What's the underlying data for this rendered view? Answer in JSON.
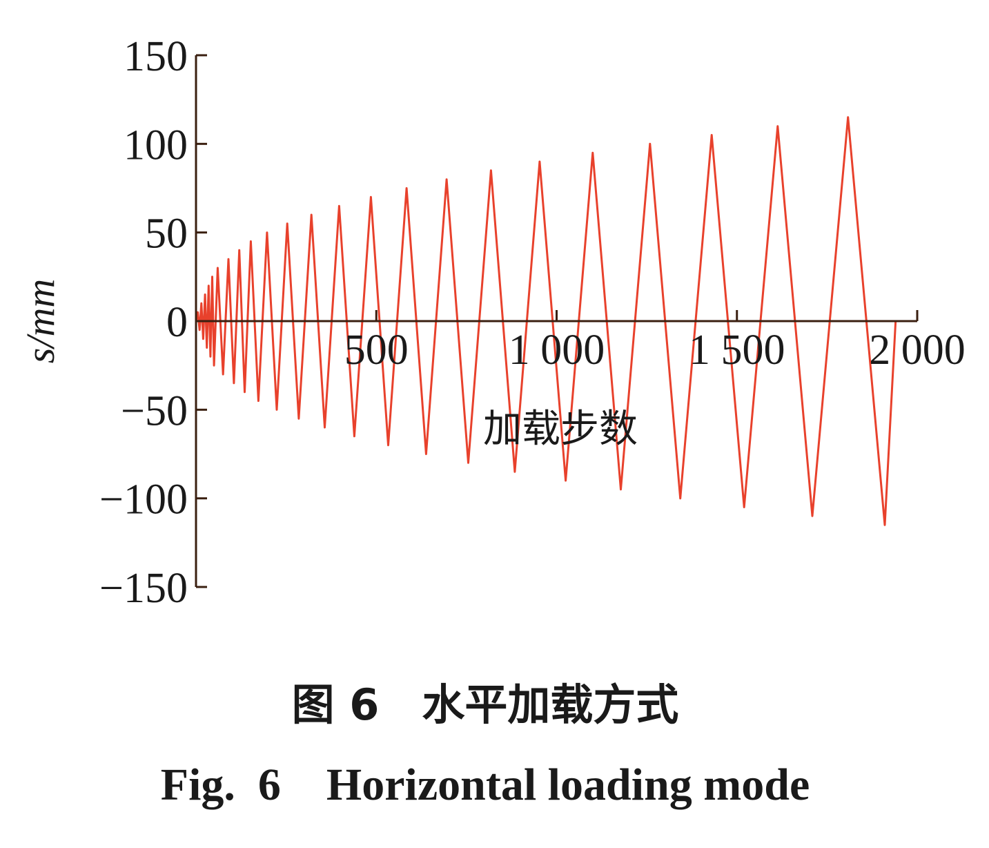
{
  "chart_data": {
    "type": "line",
    "xlabel": "加载步数",
    "ylabel": "s/mm",
    "xlim": [
      0,
      2000
    ],
    "ylim": [
      -150,
      150
    ],
    "x_ticks": [
      {
        "value": 500,
        "label": "500"
      },
      {
        "value": 1000,
        "label": "1 000"
      },
      {
        "value": 1500,
        "label": "1 500"
      },
      {
        "value": 2000,
        "label": "2 000"
      }
    ],
    "y_ticks": [
      {
        "value": 150,
        "label": "150"
      },
      {
        "value": 100,
        "label": "100"
      },
      {
        "value": 50,
        "label": "50"
      },
      {
        "value": 0,
        "label": "0"
      },
      {
        "value": -50,
        "label": "−50"
      },
      {
        "value": -100,
        "label": "−100"
      },
      {
        "value": -150,
        "label": "−150"
      }
    ],
    "line_color": "#e8412c",
    "axis_color": "#3a1f10",
    "grid": false,
    "series": [
      {
        "x": [
          0,
          5,
          10,
          15,
          20,
          25,
          30,
          35,
          40,
          45,
          50,
          60,
          75,
          90,
          105,
          120,
          135,
          152,
          173,
          197,
          224,
          253,
          285,
          320,
          357,
          397,
          439,
          485,
          533,
          584,
          638,
          695,
          755,
          818,
          884,
          953,
          1025,
          1100,
          1178,
          1259,
          1343,
          1430,
          1520,
          1613,
          1709,
          1808,
          1910,
          1940
        ],
        "y": [
          0,
          5,
          -5,
          10,
          -10,
          15,
          -15,
          20,
          -20,
          25,
          -25,
          30,
          -30,
          35,
          -35,
          40,
          -40,
          45,
          -45,
          50,
          -50,
          55,
          -55,
          60,
          -60,
          65,
          -65,
          70,
          -70,
          75,
          -75,
          80,
          -80,
          85,
          -85,
          90,
          -90,
          95,
          -95,
          100,
          -100,
          105,
          -105,
          110,
          -110,
          115,
          -115,
          0
        ]
      }
    ]
  },
  "caption": {
    "cn": "图 6　水平加载方式",
    "en": "Fig.  6　Horizontal loading mode"
  }
}
